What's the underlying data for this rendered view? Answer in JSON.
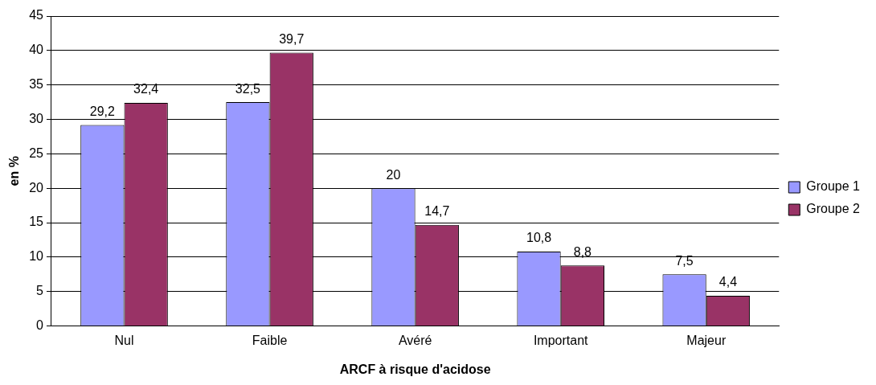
{
  "chart_data": {
    "type": "bar",
    "xlabel": "ARCF à risque d'acidose",
    "ylabel": "en %",
    "categories": [
      "Nul",
      "Faible",
      "Avéré",
      "Important",
      "Majeur"
    ],
    "series": [
      {
        "name": "Groupe 1",
        "color": "#9999ff",
        "values": [
          29.2,
          32.5,
          20,
          10.8,
          7.5
        ],
        "value_labels": [
          "29,2",
          "32,5",
          "20",
          "10,8",
          "7,5"
        ]
      },
      {
        "name": "Groupe 2",
        "color": "#993366",
        "values": [
          32.4,
          39.7,
          14.7,
          8.8,
          4.4
        ],
        "value_labels": [
          "32,4",
          "39,7",
          "14,7",
          "8,8",
          "4,4"
        ]
      }
    ],
    "ylim": [
      0,
      45
    ],
    "yticks": [
      0,
      5,
      10,
      15,
      20,
      25,
      30,
      35,
      40,
      45
    ],
    "grid": "y",
    "legend": "right"
  }
}
